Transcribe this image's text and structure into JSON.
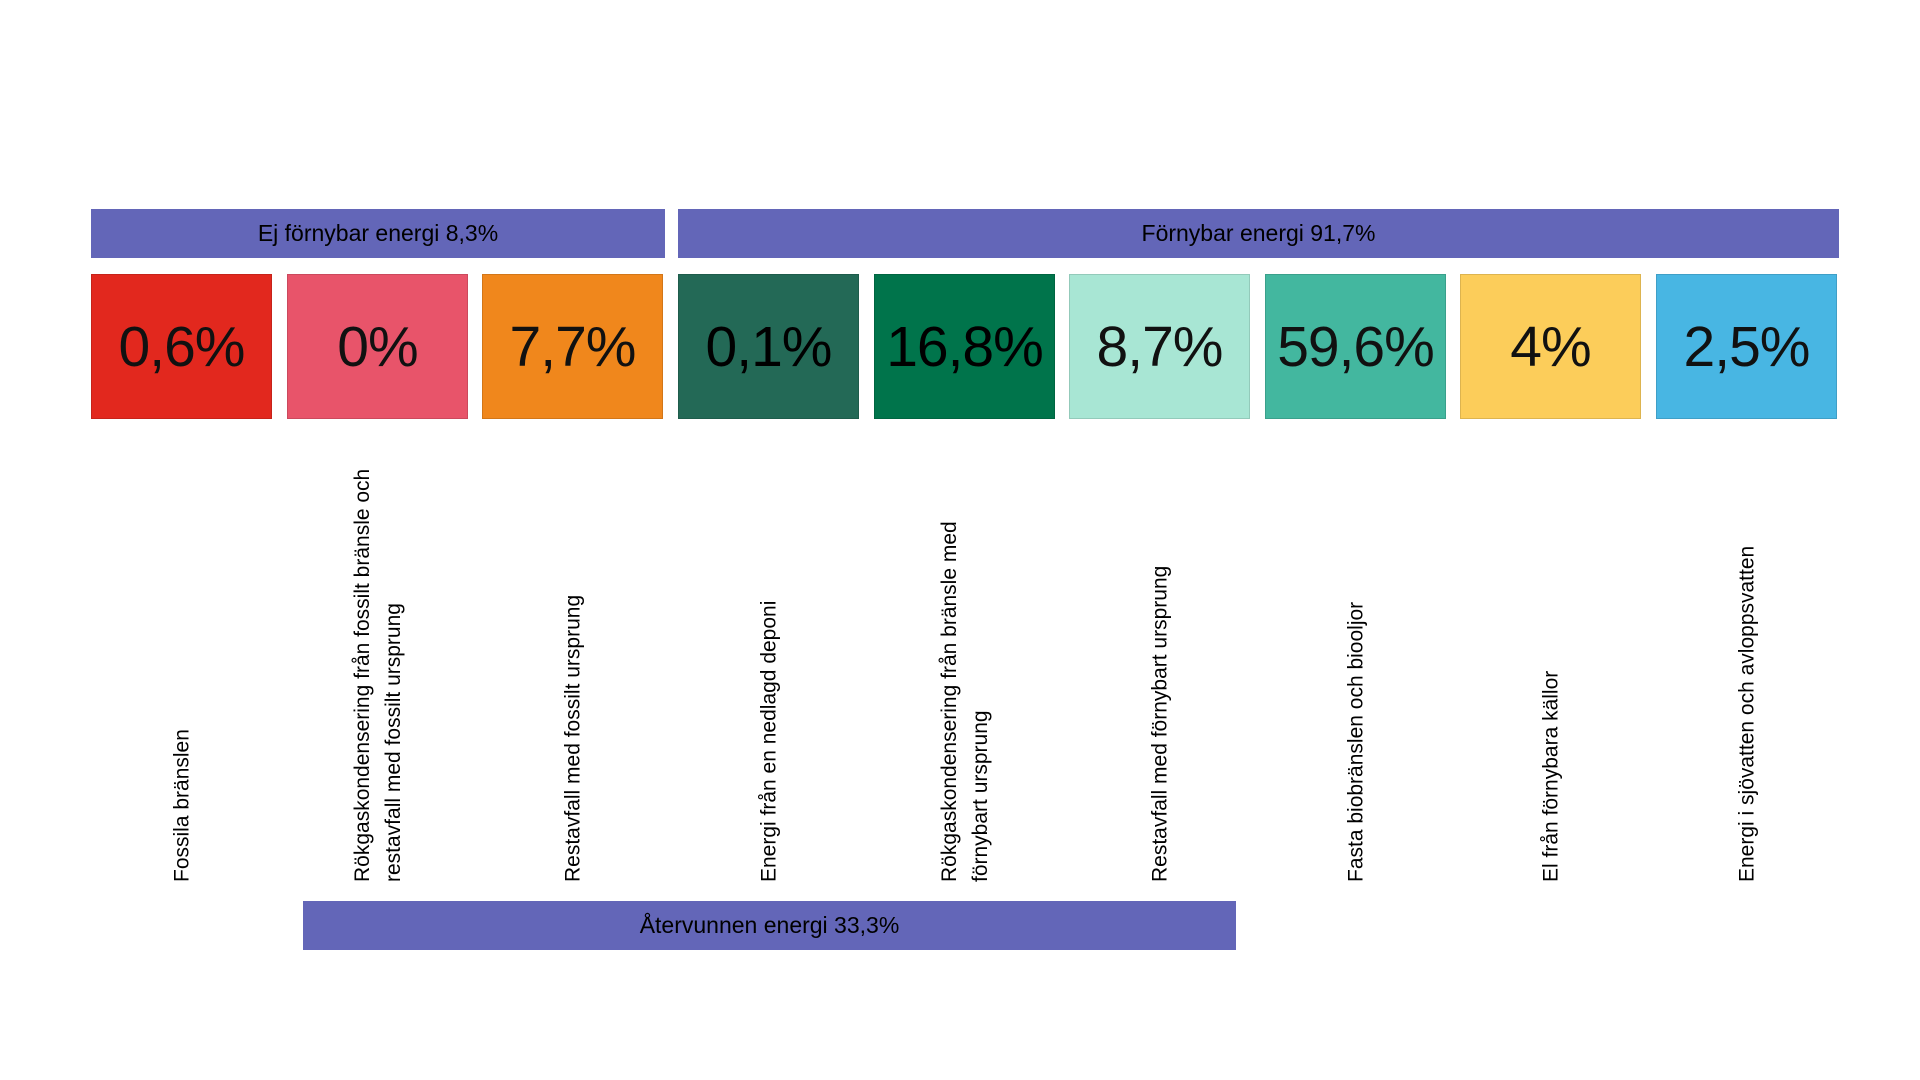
{
  "groups": {
    "non_renewable": {
      "label": "Ej förnybar energi 8,3%",
      "color": "#6366b8"
    },
    "renewable": {
      "label": "Förnybar energi 91,7%",
      "color": "#6366b8"
    },
    "recycled": {
      "label": "Återvunnen energi 33,3%",
      "color": "#6366b8"
    }
  },
  "tiles": [
    {
      "value": "0,6%",
      "label": "Fossila bränslen",
      "color": "#e2281e"
    },
    {
      "value": "0%",
      "label": "Rökgaskondensering från fossilt bränsle och restavfall med fossilt ursprung",
      "color": "#e8546a"
    },
    {
      "value": "7,7%",
      "label": "Restavfall med fossilt ursprung",
      "color": "#f0871c"
    },
    {
      "value": "0,1%",
      "label": "Energi från en nedlagd deponi",
      "color": "#236956"
    },
    {
      "value": "16,8%",
      "label": "Rökgaskondensering från bränsle med förnybart ursprung",
      "color": "#00744b"
    },
    {
      "value": "8,7%",
      "label": "Restavfall med förnybart ursprung",
      "color": "#a8e6d4"
    },
    {
      "value": "59,6%",
      "label": "Fasta biobränslen och biooljor",
      "color": "#43b79f"
    },
    {
      "value": "4%",
      "label": "El från förnybara källor",
      "color": "#fccd5a"
    },
    {
      "value": "2,5%",
      "label": "Energi i sjövatten och avloppsvatten",
      "color": "#48b6e3"
    }
  ]
}
